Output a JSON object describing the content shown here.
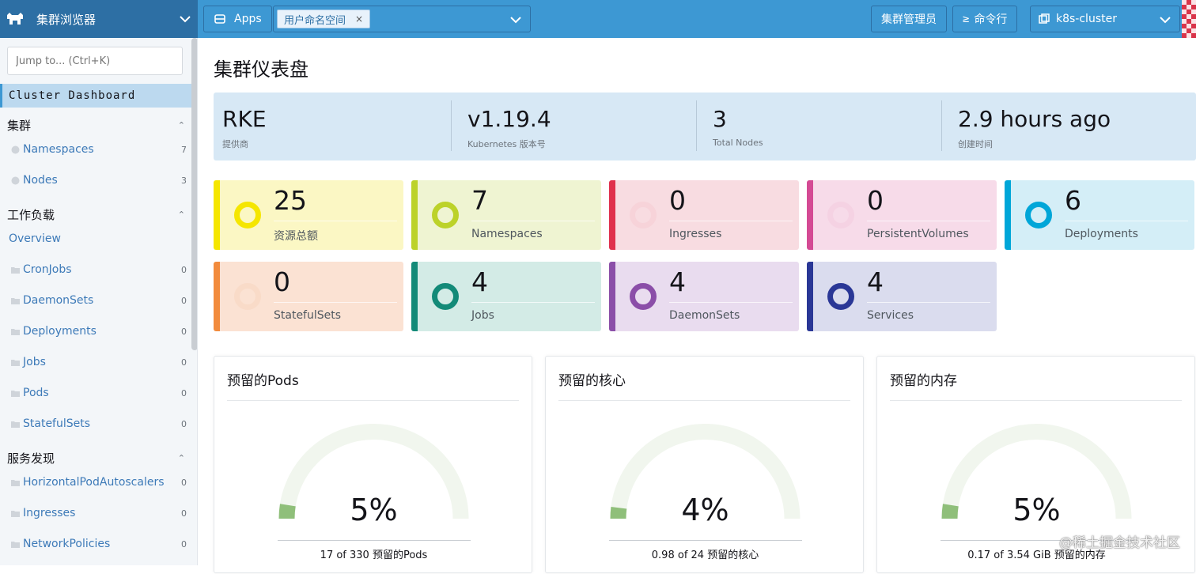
{
  "topbar": {
    "explorer_label": "集群浏览器",
    "apps_label": "Apps",
    "namespace_tag": "用户命名空间",
    "namespace_remove": "×",
    "cluster_manager_label": "集群管理员",
    "kubectl_label": "命令行",
    "cluster_label": "k8s-cluster"
  },
  "sidebar": {
    "jump_placeholder": "Jump to... (Ctrl+K)",
    "active_item": "Cluster Dashboard",
    "groups": [
      {
        "label": "集群",
        "caret": "⌃"
      },
      {
        "label": "工作负载",
        "caret": "⌃"
      },
      {
        "label": "服务发现",
        "caret": "⌃"
      }
    ],
    "cluster_items": [
      {
        "label": "Namespaces",
        "count": "7"
      },
      {
        "label": "Nodes",
        "count": "3"
      }
    ],
    "workload_overview": "Overview",
    "workload_items": [
      {
        "label": "CronJobs",
        "count": "0"
      },
      {
        "label": "DaemonSets",
        "count": "0"
      },
      {
        "label": "Deployments",
        "count": "0"
      },
      {
        "label": "Jobs",
        "count": "0"
      },
      {
        "label": "Pods",
        "count": "0"
      },
      {
        "label": "StatefulSets",
        "count": "0"
      }
    ],
    "discovery_items": [
      {
        "label": "HorizontalPodAutoscalers",
        "count": "0"
      },
      {
        "label": "Ingresses",
        "count": "0"
      },
      {
        "label": "NetworkPolicies",
        "count": "0"
      }
    ]
  },
  "main": {
    "page_title": "集群仪表盘",
    "glance": [
      {
        "value": "RKE",
        "label": "提供商"
      },
      {
        "value": "v1.19.4",
        "label": "Kubernetes 版本号"
      },
      {
        "value": "3",
        "label": "Total Nodes"
      },
      {
        "value": "2.9 hours ago",
        "label": "创建时间"
      }
    ],
    "cards": [
      {
        "value": "25",
        "label": "资源总额",
        "color": "#f5e600",
        "bg": "#fbf7c4",
        "ring": "#f5e600",
        "ring_visible": true
      },
      {
        "value": "7",
        "label": "Namespaces",
        "color": "#bcd22a",
        "bg": "#eff4d2",
        "ring": "#bcd22a",
        "ring_visible": true
      },
      {
        "value": "0",
        "label": "Ingresses",
        "color": "#e0304c",
        "bg": "#f8dce1",
        "ring": "#f6c9d1",
        "ring_visible": false
      },
      {
        "value": "0",
        "label": "PersistentVolumes",
        "color": "#d44a94",
        "bg": "#f7dbe9",
        "ring": "#f3c9de",
        "ring_visible": false
      },
      {
        "value": "6",
        "label": "Deployments",
        "color": "#00a6d8",
        "bg": "#d4eef7",
        "ring": "#00a6d8",
        "ring_visible": true
      },
      {
        "value": "0",
        "label": "StatefulSets",
        "color": "#f28b3d",
        "bg": "#fbe2d3",
        "ring": "#f8d3bd",
        "ring_visible": false
      },
      {
        "value": "4",
        "label": "Jobs",
        "color": "#138a78",
        "bg": "#d3ebe6",
        "ring": "#138a78",
        "ring_visible": true
      },
      {
        "value": "4",
        "label": "DaemonSets",
        "color": "#8b4ea8",
        "bg": "#e9dcef",
        "ring": "#8b4ea8",
        "ring_visible": true
      },
      {
        "value": "4",
        "label": "Services",
        "color": "#2a3796",
        "bg": "#dadcee",
        "ring": "#2a3796",
        "ring_visible": true
      }
    ],
    "gauges": [
      {
        "title": "预留的Pods",
        "percent": "5%",
        "fraction": 0.05,
        "footer": "17 of 330 预留的Pods"
      },
      {
        "title": "预留的核心",
        "percent": "4%",
        "fraction": 0.04,
        "footer": "0.98 of 24 预留的核心"
      },
      {
        "title": "预留的内存",
        "percent": "5%",
        "fraction": 0.05,
        "footer": "0.17 of 3.54 GiB 预留的内存"
      }
    ],
    "gauge_color": "#8fbf7a",
    "gauge_track_color": "#f1f6ee"
  },
  "watermark": "@稀土掘金技术社区",
  "colors": {
    "header": "#3d98d3",
    "header_dark": "#2d6fa4",
    "link": "#3d7ab8"
  }
}
